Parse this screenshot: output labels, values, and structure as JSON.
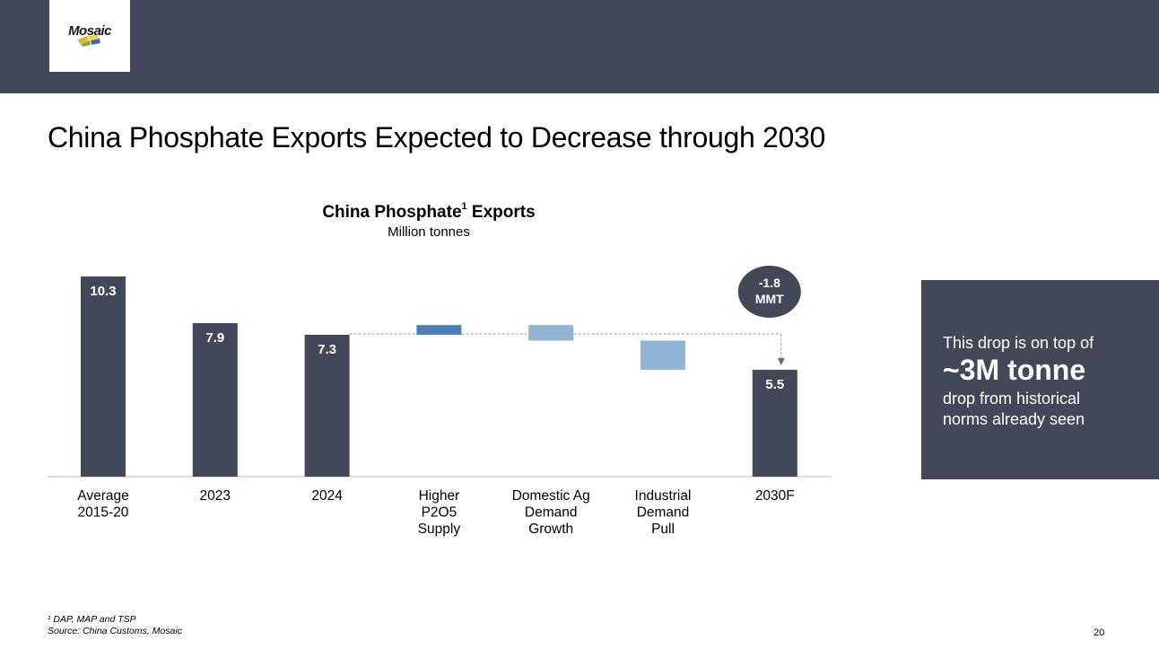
{
  "header": {
    "logo_text": "Mosaic"
  },
  "slide": {
    "title": "China Phosphate Exports Expected to Decrease through 2030",
    "page_number": "20"
  },
  "chart_data": {
    "type": "bar",
    "subtype": "waterfall",
    "title": "China Phosphate",
    "title_superscript": "1",
    "title_suffix": "Exports",
    "subtitle": "Million tonnes",
    "categories": [
      [
        "Average",
        "2015-20"
      ],
      [
        "2023"
      ],
      [
        "2024"
      ],
      [
        "Higher",
        "P2O5",
        "Supply"
      ],
      [
        "Domestic Ag",
        "Demand",
        "Growth"
      ],
      [
        "Industrial",
        "Demand",
        "Pull"
      ],
      [
        "2030F"
      ]
    ],
    "bars": [
      {
        "kind": "total",
        "value": 10.3,
        "label": "10.3"
      },
      {
        "kind": "total",
        "value": 7.9,
        "label": "7.9"
      },
      {
        "kind": "total",
        "value": 7.3,
        "label": "7.3"
      },
      {
        "kind": "delta",
        "from": 7.3,
        "to": 7.8,
        "label": ""
      },
      {
        "kind": "delta",
        "from": 7.8,
        "to": 7.0,
        "label": ""
      },
      {
        "kind": "delta",
        "from": 7.0,
        "to": 5.5,
        "label": ""
      },
      {
        "kind": "total",
        "value": 5.5,
        "label": "5.5"
      }
    ],
    "ylim": [
      0,
      10.3
    ],
    "change_annotation": {
      "line1": "-1.8",
      "line2": "MMT"
    },
    "colors": {
      "total": "#434858",
      "increase": "#4a7fb0",
      "decrease": "#8fb4d4",
      "label": "#ffffff",
      "axis": "#d0d0d0",
      "connector": "#9a9a9a"
    }
  },
  "callout": {
    "line1": "This drop is on top of",
    "line2": "~3M tonne",
    "line3a": "drop from historical",
    "line3b": "norms already seen"
  },
  "footnotes": {
    "note1": "¹ DAP, MAP and TSP",
    "source": "Source: China Customs, Mosaic"
  }
}
